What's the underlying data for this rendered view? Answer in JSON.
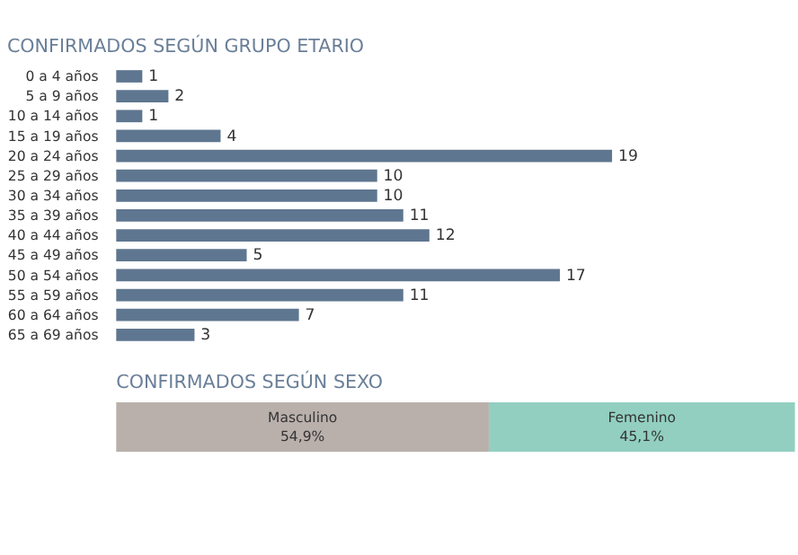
{
  "chart_data": [
    {
      "type": "bar",
      "title": "CONFIRMADOS SEGÚN GRUPO ETARIO",
      "orientation": "horizontal",
      "categories": [
        "0 a 4 años",
        "5 a 9 años",
        "10 a 14 años",
        "15 a 19 años",
        "20 a 24 años",
        "25 a 29 años",
        "30 a 34 años",
        "35 a 39 años",
        "40 a 44 años",
        "45 a 49 años",
        "50 a 54 años",
        "55 a 59 años",
        "60 a 64 años",
        "65 a 69 años"
      ],
      "values": [
        1,
        2,
        1,
        4,
        19,
        10,
        10,
        11,
        12,
        5,
        17,
        11,
        7,
        3
      ],
      "color": "#5f7690",
      "data_labels": true,
      "tick_labels": "y",
      "grid": false
    },
    {
      "type": "bar",
      "title": "CONFIRMADOS SEGÚN SEXO",
      "orientation": "horizontal",
      "stacked": true,
      "categories": [
        null
      ],
      "tick_labels": false,
      "grid": false,
      "legend": false,
      "series": [
        {
          "name": "Masculino",
          "color": "#b9b0ac",
          "values": [
            54.9
          ],
          "value_labels": [
            "54,9%"
          ]
        },
        {
          "name": "Femenino",
          "color": "#92cfc0",
          "values": [
            45.1
          ],
          "value_labels": [
            "45,1%"
          ]
        }
      ]
    }
  ]
}
